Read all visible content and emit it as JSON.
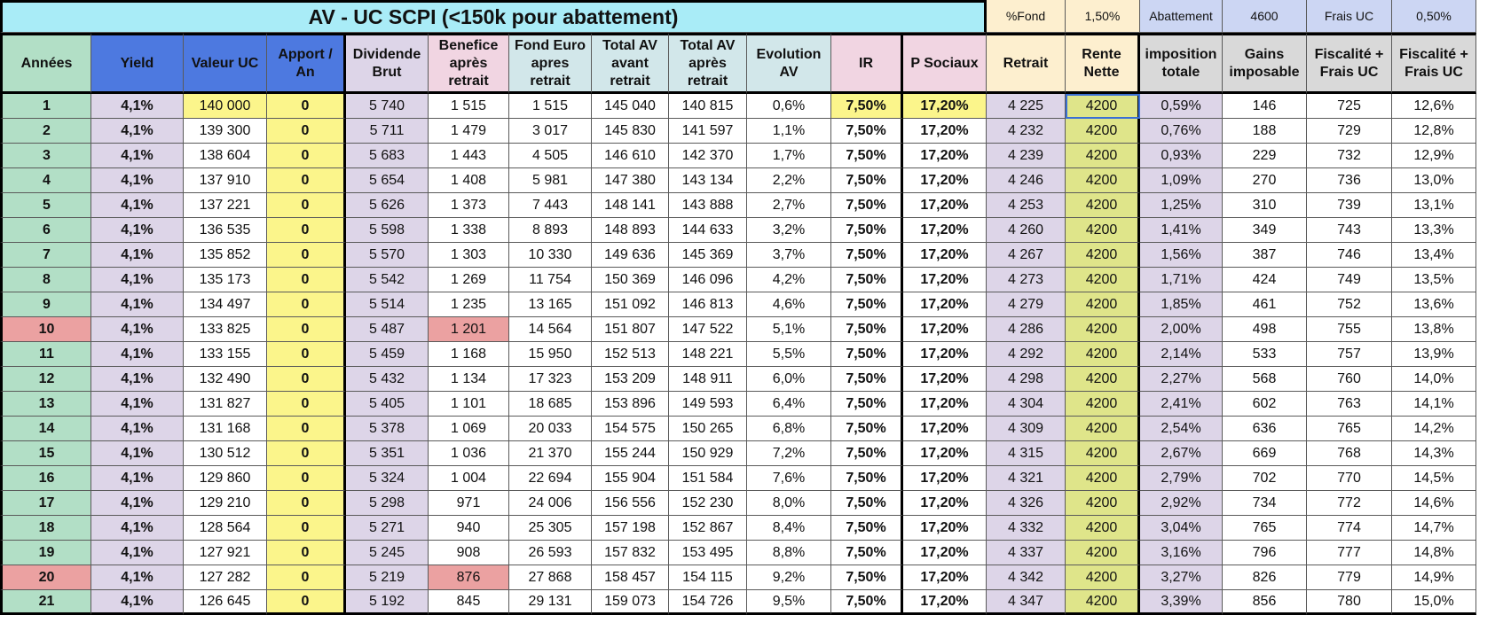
{
  "title": "AV - UC SCPI      (<150k pour abattement)",
  "params": {
    "fond_label": "%Fond",
    "fond_value": "1,50%",
    "abattement_label": "Abattement",
    "abattement_value": "4600",
    "frais_uc_label": "Frais UC",
    "frais_uc_value": "0,50%"
  },
  "headers": [
    "Années",
    "Yield",
    "Valeur UC",
    "Apport / An",
    "Dividende Brut",
    "Benefice après retrait",
    "Fond Euro apres retrait",
    "Total AV avant retrait",
    "Total AV après retrait",
    "Evolution AV",
    "IR",
    "P Sociaux",
    "Retrait",
    "Rente Nette",
    "imposition totale",
    "Gains imposable",
    "Fiscalité + Frais UC",
    "Fiscalité + Frais UC"
  ],
  "rows": [
    [
      "1",
      "4,1%",
      "140 000",
      "0",
      "5 740",
      "1 515",
      "1 515",
      "145 040",
      "140 815",
      "0,6%",
      "7,50%",
      "17,20%",
      "4 225",
      "4200",
      "0,59%",
      "146",
      "725",
      "12,6%"
    ],
    [
      "2",
      "4,1%",
      "139 300",
      "0",
      "5 711",
      "1 479",
      "3 017",
      "145 830",
      "141 597",
      "1,1%",
      "7,50%",
      "17,20%",
      "4 232",
      "4200",
      "0,76%",
      "188",
      "729",
      "12,8%"
    ],
    [
      "3",
      "4,1%",
      "138 604",
      "0",
      "5 683",
      "1 443",
      "4 505",
      "146 610",
      "142 370",
      "1,7%",
      "7,50%",
      "17,20%",
      "4 239",
      "4200",
      "0,93%",
      "229",
      "732",
      "12,9%"
    ],
    [
      "4",
      "4,1%",
      "137 910",
      "0",
      "5 654",
      "1 408",
      "5 981",
      "147 380",
      "143 134",
      "2,2%",
      "7,50%",
      "17,20%",
      "4 246",
      "4200",
      "1,09%",
      "270",
      "736",
      "13,0%"
    ],
    [
      "5",
      "4,1%",
      "137 221",
      "0",
      "5 626",
      "1 373",
      "7 443",
      "148 141",
      "143 888",
      "2,7%",
      "7,50%",
      "17,20%",
      "4 253",
      "4200",
      "1,25%",
      "310",
      "739",
      "13,1%"
    ],
    [
      "6",
      "4,1%",
      "136 535",
      "0",
      "5 598",
      "1 338",
      "8 893",
      "148 893",
      "144 633",
      "3,2%",
      "7,50%",
      "17,20%",
      "4 260",
      "4200",
      "1,41%",
      "349",
      "743",
      "13,3%"
    ],
    [
      "7",
      "4,1%",
      "135 852",
      "0",
      "5 570",
      "1 303",
      "10 330",
      "149 636",
      "145 369",
      "3,7%",
      "7,50%",
      "17,20%",
      "4 267",
      "4200",
      "1,56%",
      "387",
      "746",
      "13,4%"
    ],
    [
      "8",
      "4,1%",
      "135 173",
      "0",
      "5 542",
      "1 269",
      "11 754",
      "150 369",
      "146 096",
      "4,2%",
      "7,50%",
      "17,20%",
      "4 273",
      "4200",
      "1,71%",
      "424",
      "749",
      "13,5%"
    ],
    [
      "9",
      "4,1%",
      "134 497",
      "0",
      "5 514",
      "1 235",
      "13 165",
      "151 092",
      "146 813",
      "4,6%",
      "7,50%",
      "17,20%",
      "4 279",
      "4200",
      "1,85%",
      "461",
      "752",
      "13,6%"
    ],
    [
      "10",
      "4,1%",
      "133 825",
      "0",
      "5 487",
      "1 201",
      "14 564",
      "151 807",
      "147 522",
      "5,1%",
      "7,50%",
      "17,20%",
      "4 286",
      "4200",
      "2,00%",
      "498",
      "755",
      "13,8%"
    ],
    [
      "11",
      "4,1%",
      "133 155",
      "0",
      "5 459",
      "1 168",
      "15 950",
      "152 513",
      "148 221",
      "5,5%",
      "7,50%",
      "17,20%",
      "4 292",
      "4200",
      "2,14%",
      "533",
      "757",
      "13,9%"
    ],
    [
      "12",
      "4,1%",
      "132 490",
      "0",
      "5 432",
      "1 134",
      "17 323",
      "153 209",
      "148 911",
      "6,0%",
      "7,50%",
      "17,20%",
      "4 298",
      "4200",
      "2,27%",
      "568",
      "760",
      "14,0%"
    ],
    [
      "13",
      "4,1%",
      "131 827",
      "0",
      "5 405",
      "1 101",
      "18 685",
      "153 896",
      "149 593",
      "6,4%",
      "7,50%",
      "17,20%",
      "4 304",
      "4200",
      "2,41%",
      "602",
      "763",
      "14,1%"
    ],
    [
      "14",
      "4,1%",
      "131 168",
      "0",
      "5 378",
      "1 069",
      "20 033",
      "154 575",
      "150 265",
      "6,8%",
      "7,50%",
      "17,20%",
      "4 309",
      "4200",
      "2,54%",
      "636",
      "765",
      "14,2%"
    ],
    [
      "15",
      "4,1%",
      "130 512",
      "0",
      "5 351",
      "1 036",
      "21 370",
      "155 244",
      "150 929",
      "7,2%",
      "7,50%",
      "17,20%",
      "4 315",
      "4200",
      "2,67%",
      "669",
      "768",
      "14,3%"
    ],
    [
      "16",
      "4,1%",
      "129 860",
      "0",
      "5 324",
      "1 004",
      "22 694",
      "155 904",
      "151 584",
      "7,6%",
      "7,50%",
      "17,20%",
      "4 321",
      "4200",
      "2,79%",
      "702",
      "770",
      "14,5%"
    ],
    [
      "17",
      "4,1%",
      "129 210",
      "0",
      "5 298",
      "971",
      "24 006",
      "156 556",
      "152 230",
      "8,0%",
      "7,50%",
      "17,20%",
      "4 326",
      "4200",
      "2,92%",
      "734",
      "772",
      "14,6%"
    ],
    [
      "18",
      "4,1%",
      "128 564",
      "0",
      "5 271",
      "940",
      "25 305",
      "157 198",
      "152 867",
      "8,4%",
      "7,50%",
      "17,20%",
      "4 332",
      "4200",
      "3,04%",
      "765",
      "774",
      "14,7%"
    ],
    [
      "19",
      "4,1%",
      "127 921",
      "0",
      "5 245",
      "908",
      "26 593",
      "157 832",
      "153 495",
      "8,8%",
      "7,50%",
      "17,20%",
      "4 337",
      "4200",
      "3,16%",
      "796",
      "777",
      "14,8%"
    ],
    [
      "20",
      "4,1%",
      "127 282",
      "0",
      "5 219",
      "876",
      "27 868",
      "158 457",
      "154 115",
      "9,2%",
      "7,50%",
      "17,20%",
      "4 342",
      "4200",
      "3,27%",
      "826",
      "779",
      "14,9%"
    ],
    [
      "21",
      "4,1%",
      "126 645",
      "0",
      "5 192",
      "845",
      "29 131",
      "159 073",
      "154 726",
      "9,5%",
      "7,50%",
      "17,20%",
      "4 347",
      "4200",
      "3,39%",
      "856",
      "780",
      "15,0%"
    ]
  ],
  "highlight_rows": [
    "10",
    "20"
  ],
  "colors": {
    "title_bg": "#a9ecf7",
    "annee_bg": "#b2dfc6",
    "lavender": "#ddd5e8",
    "blue_header": "#4d79e0",
    "yellow": "#fbf58b",
    "olive": "#dfe58a",
    "red_highlight": "#eba1a1",
    "pink_header": "#f1d5e2"
  }
}
